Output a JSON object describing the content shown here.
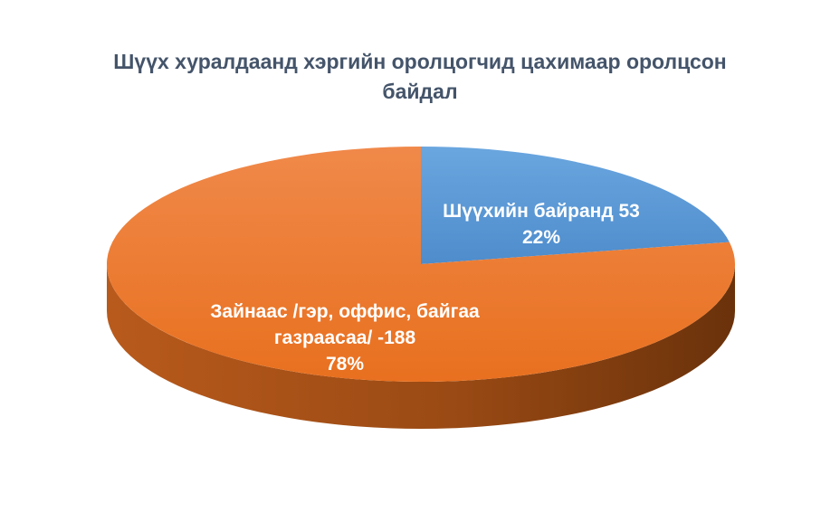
{
  "chart_data": {
    "type": "pie",
    "style": "3d",
    "title": [
      "Шүүх хуралдаанд хэргийн оролцогчид цахимаар оролцсон",
      "байдал"
    ],
    "slices": [
      {
        "label_lines": [
          "Шүүхийн байранд 53"
        ],
        "value": 53,
        "percent_label": "22%",
        "color": "#5b9bd5"
      },
      {
        "label_lines": [
          "Зайнаас /гэр, оффис, байгаа",
          "газраасаа/ -188"
        ],
        "value": 188,
        "percent_label": "78%",
        "color": "#ed7d31"
      }
    ],
    "legend": "none"
  }
}
